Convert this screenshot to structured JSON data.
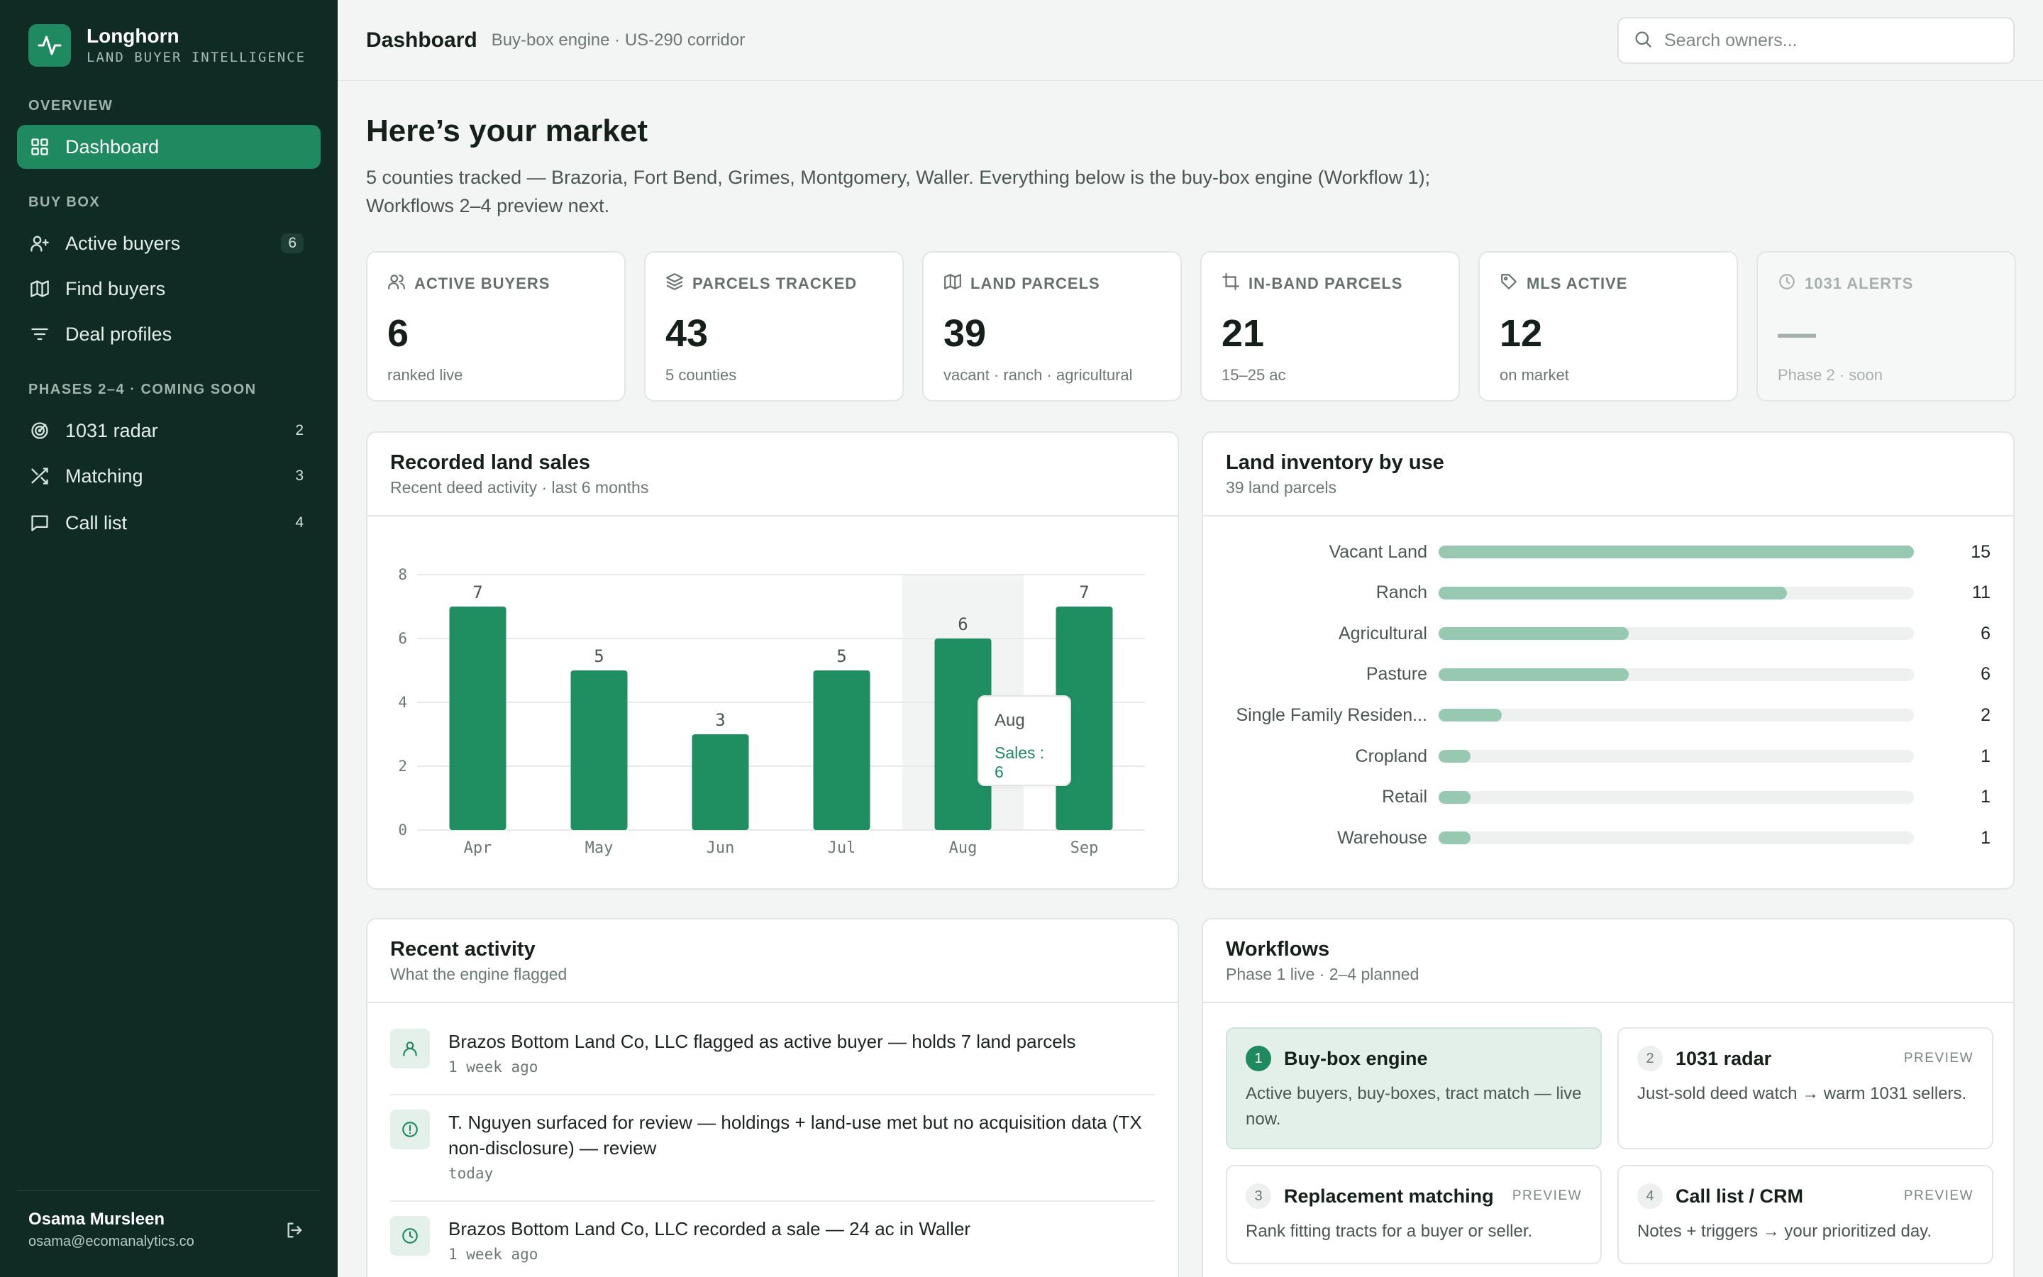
{
  "brand": {
    "name": "Longhorn",
    "tagline": "LAND BUYER INTELLIGENCE"
  },
  "sidebar": {
    "sections": {
      "overview": "OVERVIEW",
      "buy_box": "BUY BOX",
      "phases": "PHASES 2–4 · COMING SOON"
    },
    "items": [
      {
        "label": "Dashboard",
        "icon": "grid-icon",
        "count": ""
      },
      {
        "label": "Active buyers",
        "icon": "user-plus-icon",
        "count": "6"
      },
      {
        "label": "Find buyers",
        "icon": "map-icon",
        "count": ""
      },
      {
        "label": "Deal profiles",
        "icon": "filter-icon",
        "count": ""
      },
      {
        "label": "1031 radar",
        "icon": "radar-icon",
        "count": "2"
      },
      {
        "label": "Matching",
        "icon": "shuffle-icon",
        "count": "3"
      },
      {
        "label": "Call list",
        "icon": "message-icon",
        "count": "4"
      }
    ],
    "user": {
      "name": "Osama Mursleen",
      "email": "osama@ecomanalytics.co"
    }
  },
  "topbar": {
    "title": "Dashboard",
    "subtitle": "Buy-box engine · US-290 corridor",
    "search_placeholder": "Search owners..."
  },
  "main": {
    "headline": "Here’s your market",
    "intro": "5 counties tracked — Brazoria, Fort Bend, Grimes, Montgomery, Waller. Everything below is the buy-box engine (Workflow 1); Workflows 2–4 preview next.",
    "stats": [
      {
        "label": "ACTIVE BUYERS",
        "value": "6",
        "sub": "ranked live",
        "icon": "users-icon"
      },
      {
        "label": "PARCELS TRACKED",
        "value": "43",
        "sub": "5 counties",
        "icon": "layers-icon"
      },
      {
        "label": "LAND PARCELS",
        "value": "39",
        "sub": "vacant · ranch · agricultural",
        "icon": "map-icon"
      },
      {
        "label": "IN-BAND PARCELS",
        "value": "21",
        "sub": "15–25 ac",
        "icon": "crop-icon"
      },
      {
        "label": "MLS ACTIVE",
        "value": "12",
        "sub": "on market",
        "icon": "tag-icon"
      },
      {
        "label": "1031 ALERTS",
        "value": "—",
        "sub": "Phase 2 · soon",
        "icon": "clock-icon"
      }
    ]
  },
  "sales_card": {
    "title": "Recorded land sales",
    "subtitle": "Recent deed activity · last 6 months",
    "tooltip": {
      "month": "Aug",
      "text": "Sales : 6"
    }
  },
  "chart_data": {
    "type": "bar",
    "categories": [
      "Apr",
      "May",
      "Jun",
      "Jul",
      "Aug",
      "Sep"
    ],
    "series": [
      {
        "name": "Sales",
        "values": [
          7,
          5,
          3,
          5,
          6,
          7
        ]
      }
    ],
    "ylim": [
      0,
      8
    ],
    "yticks": [
      0,
      2,
      4,
      6,
      8
    ],
    "grid": true,
    "highlight": "Aug",
    "color": "#1f8f62"
  },
  "inventory": {
    "title": "Land inventory by use",
    "subtitle": "39 land parcels",
    "max": 15,
    "rows": [
      {
        "label": "Vacant Land",
        "value": 15
      },
      {
        "label": "Ranch",
        "value": 11
      },
      {
        "label": "Agricultural",
        "value": 6
      },
      {
        "label": "Pasture",
        "value": 6
      },
      {
        "label": "Single Family Residen...",
        "value": 2
      },
      {
        "label": "Cropland",
        "value": 1
      },
      {
        "label": "Retail",
        "value": 1
      },
      {
        "label": "Warehouse",
        "value": 1
      }
    ]
  },
  "activity": {
    "title": "Recent activity",
    "subtitle": "What the engine flagged",
    "items": [
      {
        "text": "Brazos Bottom Land Co, LLC flagged as active buyer — holds 7 land parcels",
        "time": "1 week ago",
        "icon": "user-icon"
      },
      {
        "text": "T. Nguyen surfaced for review — holdings + land-use met but no acquisition data (TX non-disclosure) — review",
        "time": "today",
        "icon": "alert-circle-icon"
      },
      {
        "text": "Brazos Bottom Land Co, LLC recorded a sale — 24 ac in Waller",
        "time": "1 week ago",
        "icon": "clock-icon"
      }
    ]
  },
  "workflows": {
    "title": "Workflows",
    "subtitle": "Phase 1 live · 2–4 planned",
    "items": [
      {
        "num": "1",
        "title": "Buy-box engine",
        "badge": "",
        "desc": "Active buyers, buy-boxes, tract match — live now."
      },
      {
        "num": "2",
        "title": "1031 radar",
        "badge": "PREVIEW",
        "desc": "Just-sold deed watch → warm 1031 sellers."
      },
      {
        "num": "3",
        "title": "Replacement matching",
        "badge": "PREVIEW",
        "desc": "Rank fitting tracts for a buyer or seller."
      },
      {
        "num": "4",
        "title": "Call list / CRM",
        "badge": "PREVIEW",
        "desc": "Notes + triggers → your prioritized day."
      }
    ]
  }
}
